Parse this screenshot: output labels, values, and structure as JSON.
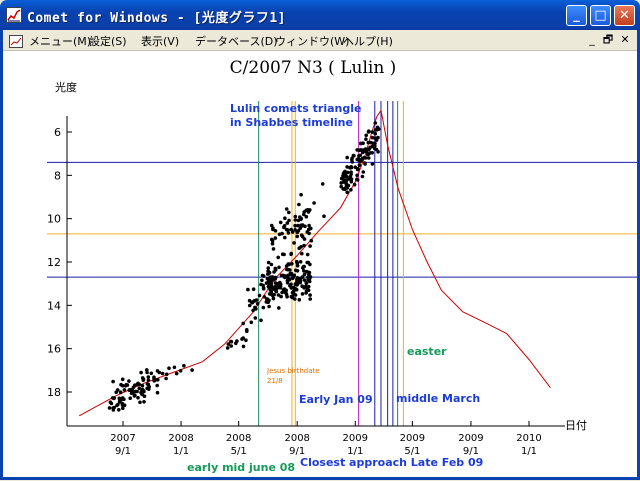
{
  "window": {
    "title": "Comet for Windows - [光度グラフ1]",
    "buttons": {
      "minimize": "_",
      "maximize": "□",
      "close": "✕"
    }
  },
  "menu": {
    "items": [
      "メニュー(M)",
      "設定(S)",
      "表示(V)",
      "データベース(D)",
      "ウィンドウ(W)",
      "ヘルプ(H)"
    ],
    "mdi_buttons": [
      "_",
      "🗗",
      "✕"
    ]
  },
  "chart_data": {
    "type": "scatter",
    "title": "C/2007 N3 ( Lulin )",
    "ylabel": "光度",
    "xlabel": "日付",
    "y_inverted": true,
    "ylim": [
      19.2,
      4.6
    ],
    "yticks": [
      6,
      8,
      10,
      12,
      14,
      16,
      18
    ],
    "xlim": [
      "2007-06-01",
      "2010-03-01"
    ],
    "xticks": [
      {
        "date": "2007-09-01",
        "year": "2007",
        "md": "9/1"
      },
      {
        "date": "2008-01-01",
        "year": "2008",
        "md": "1/1"
      },
      {
        "date": "2008-05-01",
        "year": "2008",
        "md": "5/1"
      },
      {
        "date": "2008-09-01",
        "year": "2008",
        "md": "9/1"
      },
      {
        "date": "2009-01-01",
        "year": "2009",
        "md": "1/1"
      },
      {
        "date": "2009-05-01",
        "year": "2009",
        "md": "5/1"
      },
      {
        "date": "2009-09-01",
        "year": "2009",
        "md": "9/1"
      },
      {
        "date": "2010-01-01",
        "year": "2010",
        "md": "1/1"
      }
    ],
    "curve": {
      "color": "#cc0000",
      "points": [
        [
          "2007-06-01",
          19.1
        ],
        [
          "2007-08-15",
          18.2
        ],
        [
          "2007-10-15",
          17.6
        ],
        [
          "2007-12-15",
          17.1
        ],
        [
          "2008-02-15",
          16.6
        ],
        [
          "2008-04-01",
          15.8
        ],
        [
          "2008-06-01",
          14.3
        ],
        [
          "2008-07-15",
          12.8
        ],
        [
          "2008-09-01",
          11.7
        ],
        [
          "2008-10-15",
          10.6
        ],
        [
          "2008-12-01",
          9.5
        ],
        [
          "2009-01-01",
          8.3
        ],
        [
          "2009-01-20",
          7.2
        ],
        [
          "2009-02-05",
          6.0
        ],
        [
          "2009-02-15",
          5.3
        ],
        [
          "2009-02-24",
          5.0
        ],
        [
          "2009-03-10",
          6.6
        ],
        [
          "2009-04-01",
          8.6
        ],
        [
          "2009-05-01",
          10.5
        ],
        [
          "2009-06-01",
          12.0
        ],
        [
          "2009-07-01",
          13.3
        ],
        [
          "2009-08-15",
          14.3
        ],
        [
          "2009-10-01",
          14.8
        ],
        [
          "2009-11-15",
          15.3
        ],
        [
          "2010-01-01",
          16.5
        ],
        [
          "2010-02-15",
          17.8
        ]
      ]
    },
    "clusters": [
      {
        "x_from": "2007-08-01",
        "x_to": "2007-11-15",
        "y_center": 17.9,
        "spread": 0.6,
        "count": 90,
        "trend": -0.9
      },
      {
        "x_from": "2007-11-15",
        "x_to": "2008-02-01",
        "y_center": 17.1,
        "spread": 0.25,
        "count": 10,
        "trend": -0.3
      },
      {
        "x_from": "2008-04-01",
        "x_to": "2008-05-20",
        "y_center": 15.7,
        "spread": 0.5,
        "count": 14,
        "trend": -1.0
      },
      {
        "x_from": "2008-05-20",
        "x_to": "2008-07-15",
        "y_center": 13.5,
        "spread": 0.9,
        "count": 45,
        "trend": -0.8
      },
      {
        "x_from": "2008-07-01",
        "x_to": "2008-10-01",
        "y_center": 12.9,
        "spread": 0.9,
        "count": 160,
        "trend": -0.3
      },
      {
        "x_from": "2008-07-01",
        "x_to": "2008-10-01",
        "y_center": 10.6,
        "spread": 0.9,
        "count": 60,
        "trend": -0.6
      },
      {
        "x_from": "2008-09-01",
        "x_to": "2008-11-01",
        "y_center": 9.6,
        "spread": 0.8,
        "count": 12,
        "trend": -0.7
      },
      {
        "x_from": "2008-12-01",
        "x_to": "2009-02-20",
        "y_center": 7.3,
        "spread": 0.7,
        "count": 120,
        "trend": -2.2
      }
    ],
    "hlines": [
      {
        "y": 7.4,
        "color": "#1c1cb0"
      },
      {
        "y": 10.7,
        "color": "#f0b020"
      },
      {
        "y": 12.7,
        "color": "#1c1cb0"
      }
    ],
    "vlines": [
      {
        "x": "2008-06-12",
        "color": "#188a60"
      },
      {
        "x": "2008-08-21",
        "color": "#f0b020"
      },
      {
        "x": "2008-08-28",
        "color": "#f0b020"
      },
      {
        "x": "2009-01-08",
        "color": "#c020c0"
      },
      {
        "x": "2009-02-11",
        "color": "#1c1cb0"
      },
      {
        "x": "2009-02-24",
        "color": "#1c1cb0"
      },
      {
        "x": "2009-03-10",
        "color": "#1c1cb0"
      },
      {
        "x": "2009-03-21",
        "color": "#1c1cb0"
      },
      {
        "x": "2009-03-31",
        "color": "#188a60"
      },
      {
        "x": "2009-04-12",
        "color": "#f0b020"
      }
    ],
    "annotations": [
      {
        "id": "lulin-triangle",
        "lines": [
          "Lulin comets triangle",
          "in Shabbes timeline"
        ],
        "color": "#1c3cd8",
        "size": 11,
        "weight": "bold"
      },
      {
        "id": "jesus-birthdate",
        "lines": [
          "Jesus birthdate",
          "21/8"
        ],
        "color": "#e07000",
        "size": 7,
        "weight": "normal"
      },
      {
        "id": "early-jan-09",
        "lines": [
          "Early Jan 09"
        ],
        "color": "#1c3cd8",
        "size": 11,
        "weight": "bold"
      },
      {
        "id": "middle-march",
        "lines": [
          "middle March"
        ],
        "color": "#1c3cd8",
        "size": 11,
        "weight": "bold"
      },
      {
        "id": "easter",
        "lines": [
          "easter"
        ],
        "color": "#159a5a",
        "size": 11,
        "weight": "bold"
      },
      {
        "id": "early-mid-june",
        "lines": [
          "early mid june 08"
        ],
        "color": "#159a5a",
        "size": 11,
        "weight": "bold"
      },
      {
        "id": "closest-approach",
        "lines": [
          "Closest approach Late Feb 09"
        ],
        "color": "#1c3cd8",
        "size": 11,
        "weight": "bold"
      }
    ]
  }
}
